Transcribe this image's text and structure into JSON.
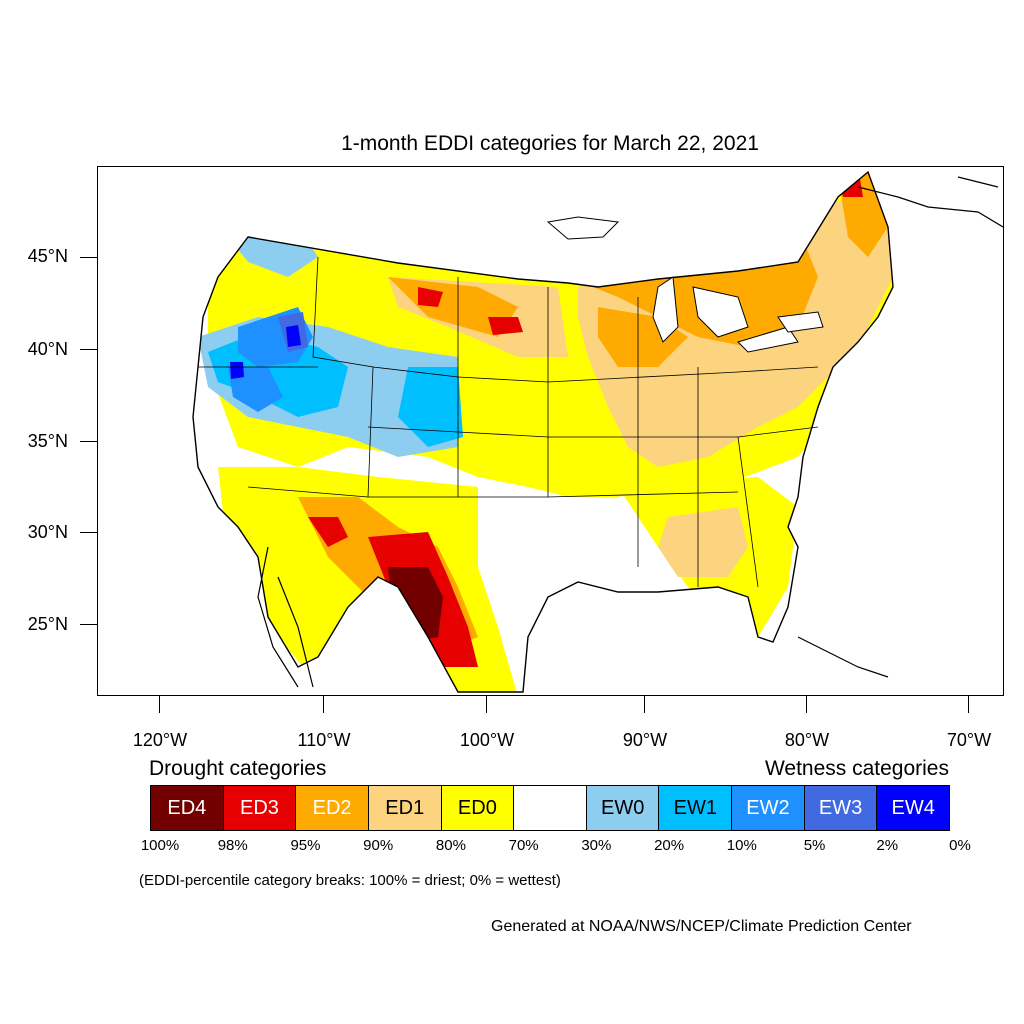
{
  "title": "1-month EDDI categories for March 22, 2021",
  "lat_labels": [
    "45°N",
    "40°N",
    "35°N",
    "30°N",
    "25°N"
  ],
  "lon_labels": [
    "120°W",
    "110°W",
    "100°W",
    "90°W",
    "80°W",
    "70°W"
  ],
  "legend": {
    "drought_heading": "Drought categories",
    "wetness_heading": "Wetness categories",
    "categories": [
      {
        "label": "ED4",
        "color": "#730000",
        "text_color": "#ffffff"
      },
      {
        "label": "ED3",
        "color": "#e60000",
        "text_color": "#ffffff"
      },
      {
        "label": "ED2",
        "color": "#ffaa00",
        "text_color": "#ffffff"
      },
      {
        "label": "ED1",
        "color": "#fcd37f",
        "text_color": "#000000"
      },
      {
        "label": "ED0",
        "color": "#ffff00",
        "text_color": "#000000"
      },
      {
        "label": "",
        "color": "#ffffff",
        "text_color": "#000000"
      },
      {
        "label": "EW0",
        "color": "#8dcdf0",
        "text_color": "#000000"
      },
      {
        "label": "EW1",
        "color": "#00bfff",
        "text_color": "#000000"
      },
      {
        "label": "EW2",
        "color": "#1e90ff",
        "text_color": "#ffffff"
      },
      {
        "label": "EW3",
        "color": "#4169e1",
        "text_color": "#ffffff"
      },
      {
        "label": "EW4",
        "color": "#0000ff",
        "text_color": "#ffffff"
      }
    ],
    "percentiles": [
      "100%",
      "98%",
      "95%",
      "90%",
      "80%",
      "70%",
      "30%",
      "20%",
      "10%",
      "5%",
      "2%",
      "0%"
    ]
  },
  "note": "(EDDI-percentile category breaks: 100% = driest; 0% = wettest)",
  "credit": "Generated at NOAA/NWS/NCEP/Climate Prediction Center"
}
